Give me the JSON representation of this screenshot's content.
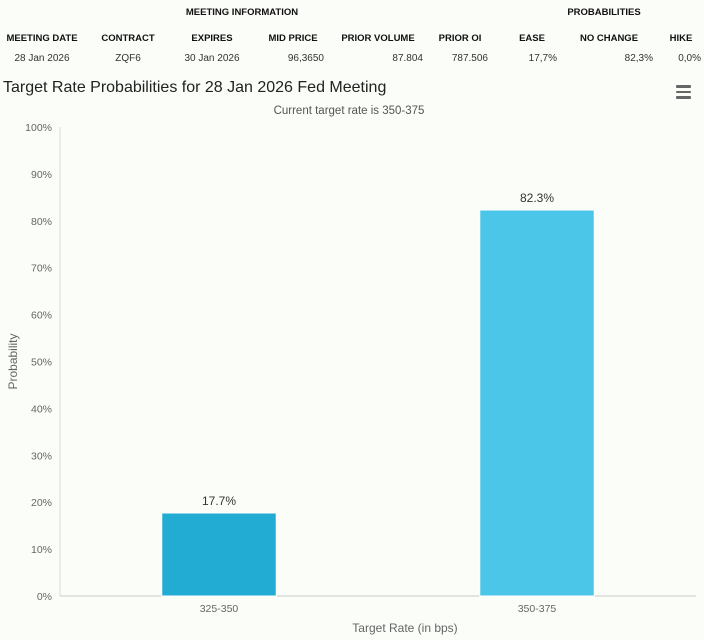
{
  "table": {
    "groups": {
      "meeting_info": "MEETING INFORMATION",
      "probabilities": "PROBABILITIES"
    },
    "headers": {
      "meeting_date": "MEETING DATE",
      "contract": "CONTRACT",
      "expires": "EXPIRES",
      "mid_price": "MID PRICE",
      "prior_volume": "PRIOR VOLUME",
      "prior_oi": "PRIOR OI",
      "ease": "EASE",
      "no_change": "NO CHANGE",
      "hike": "HIKE"
    },
    "row": {
      "meeting_date": "28 Jan 2026",
      "contract": "ZQF6",
      "expires": "30 Jan 2026",
      "mid_price": "96,3650",
      "prior_volume": "87.804",
      "prior_oi": "787.506",
      "ease": "17,7%",
      "no_change": "82,3%",
      "hike": "0,0%"
    }
  },
  "chart": {
    "menu_icon": "hamburger-menu-icon"
  },
  "chart_data": {
    "type": "bar",
    "title": "Target Rate Probabilities for 28 Jan 2026 Fed Meeting",
    "subtitle": "Current target rate is 350-375",
    "xlabel": "Target Rate (in bps)",
    "ylabel": "Probability",
    "categories": [
      "325-350",
      "350-375"
    ],
    "values": [
      17.7,
      82.3
    ],
    "data_labels": [
      "17.7%",
      "82.3%"
    ],
    "bar_colors": [
      "#22acd4",
      "#4bc6e8"
    ],
    "ylim": [
      0,
      100
    ],
    "yticks": [
      "0%",
      "10%",
      "20%",
      "30%",
      "40%",
      "50%",
      "60%",
      "70%",
      "80%",
      "90%",
      "100%"
    ],
    "grid": false,
    "legend": "none"
  }
}
